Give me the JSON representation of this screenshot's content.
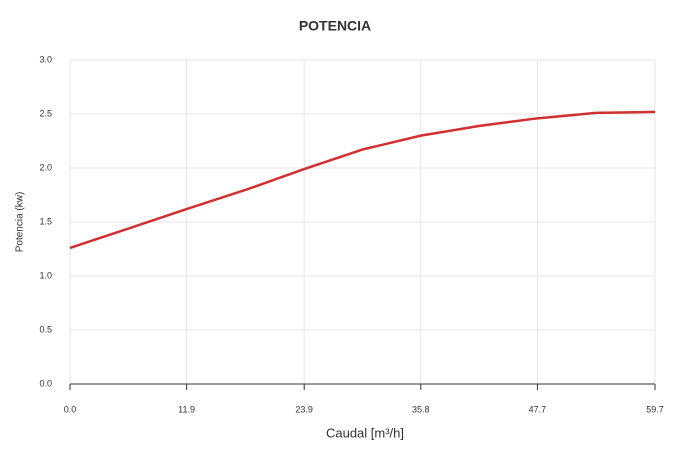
{
  "chart_data": {
    "type": "line",
    "title": "POTENCIA",
    "x_label": "Caudal [m³/h]",
    "y_label": "Potencia (kw)",
    "x": [
      0,
      6,
      11.9,
      18,
      23.9,
      29.8,
      35.8,
      41.8,
      47.7,
      53.7,
      59.7
    ],
    "series": [
      {
        "name": "Potencia",
        "color": "#d03030",
        "values": [
          1.26,
          1.44,
          1.62,
          1.8,
          1.99,
          2.17,
          2.3,
          2.39,
          2.46,
          2.51,
          2.52
        ]
      }
    ],
    "xlim": [
      0,
      59.7
    ],
    "xticks": [
      {
        "value": 0,
        "label": "0.0"
      },
      11.9,
      23.9,
      35.8,
      47.7,
      59.7
    ],
    "ylim": [
      0,
      3
    ],
    "yticks": [
      {
        "value": 0,
        "label": "0.0"
      },
      0.5,
      {
        "value": 1,
        "label": "1.0"
      },
      1.5,
      {
        "value": 2,
        "label": "2.0"
      },
      2.5,
      {
        "value": 3,
        "label": "3.0"
      }
    ],
    "grid": true
  }
}
